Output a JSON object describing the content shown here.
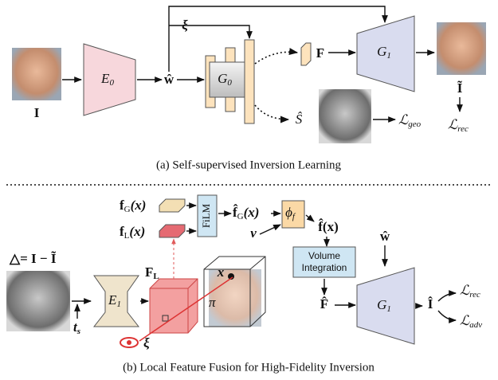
{
  "panel_a": {
    "input": "I",
    "encoder": {
      "label": "E",
      "sub": "0"
    },
    "latent": "ŵ",
    "noise": "ξ",
    "generator0": {
      "label": "G",
      "sub": "0"
    },
    "feature": "F",
    "generator1": {
      "label": "G",
      "sub": "1"
    },
    "output": "Ĩ",
    "segmentation": "Ŝ",
    "loss_geo": {
      "label": "ℒ",
      "sub": "geo"
    },
    "loss_rec": {
      "label": "ℒ",
      "sub": "rec"
    },
    "caption": "(a) Self-supervised Inversion Learning"
  },
  "panel_b": {
    "global_feature": {
      "label": "f",
      "sub": "G",
      "arg": "(x)"
    },
    "local_feature": {
      "label": "f",
      "sub": "L",
      "arg": "(x)"
    },
    "film": "FiLM",
    "fused_feature": {
      "label": "f̂",
      "sub": "G",
      "arg": "(x)"
    },
    "view_dir": "v",
    "mlp": {
      "label": "ϕ",
      "sub": "f"
    },
    "point_feature": "f̂(x)",
    "volume_integration": [
      "Volume",
      "Integration"
    ],
    "latent": "ŵ",
    "residual": "△= I − Ĩ",
    "encoder": {
      "label": "E",
      "sub": "1"
    },
    "timestep": {
      "label": "t",
      "sub": "s"
    },
    "feature_volume": {
      "label": "F",
      "sub": "L"
    },
    "point": "x",
    "plane": "π",
    "camera": "ξ",
    "rendered_feature": "F̂",
    "generator1": {
      "label": "G",
      "sub": "1"
    },
    "output": "Î",
    "loss_rec": {
      "label": "ℒ",
      "sub": "rec"
    },
    "loss_adv": {
      "label": "ℒ",
      "sub": "adv"
    },
    "caption": "(b) Local Feature Fusion for High-Fidelity Inversion"
  }
}
